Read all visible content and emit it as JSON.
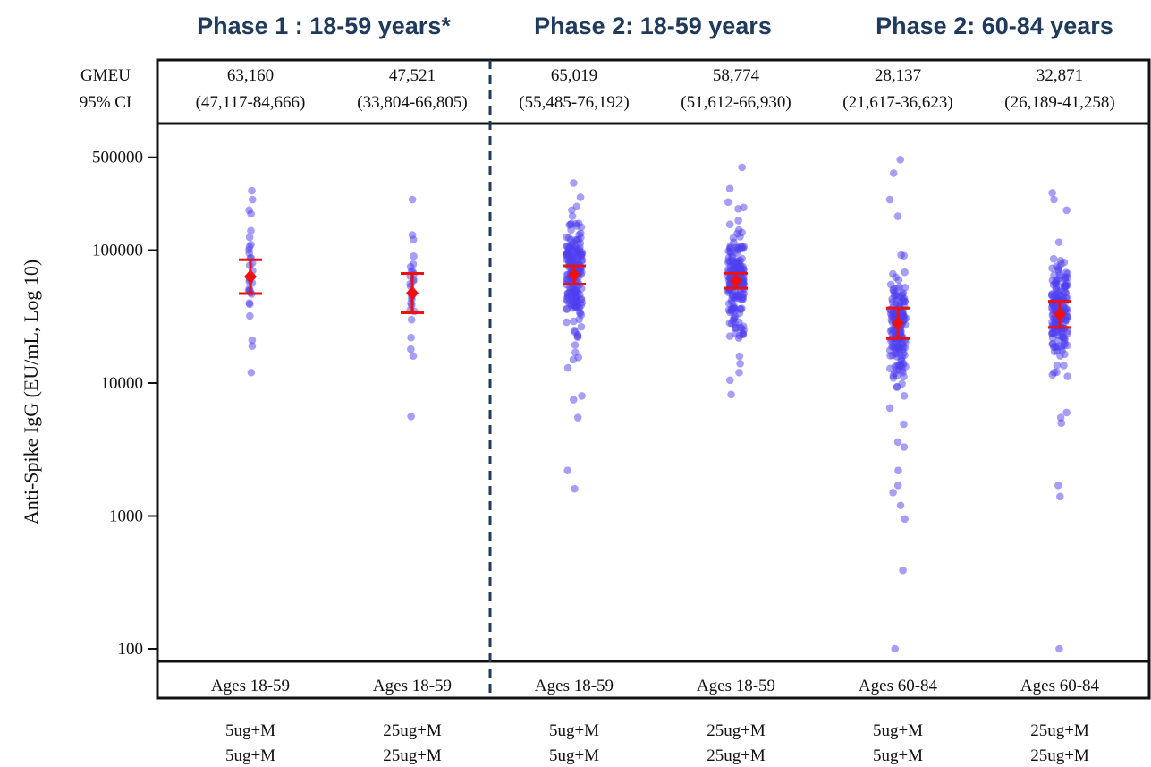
{
  "chart_data": {
    "type": "scatter",
    "ylabel": "Anti-Spike IgG (EU/mL, Log 10)",
    "yscale": "log10",
    "ylim": [
      80,
      700000
    ],
    "yticks": [
      100,
      1000,
      10000,
      100000,
      500000
    ],
    "ytick_labels": [
      "100",
      "1000",
      "10000",
      "100000",
      "500000"
    ],
    "header_stat_label": [
      "GMEU",
      "95% CI"
    ],
    "phases": [
      {
        "label": "Phase 1 : 18-59 years*",
        "groups": [
          0,
          1
        ]
      },
      {
        "label": "Phase 2: 18-59 years",
        "groups": [
          2,
          3
        ]
      },
      {
        "label": "Phase 2: 60-84 years",
        "groups": [
          4,
          5
        ]
      }
    ],
    "groups": [
      {
        "gmeu": "63,160",
        "ci": "(47,117-84,666)",
        "age": "Ages 18-59",
        "dose": [
          "5ug+M",
          "5ug+M"
        ],
        "gmt": 63160,
        "lo": 47117,
        "hi": 84666,
        "points": 30,
        "anchors": [
          280000,
          240000,
          200000,
          140000,
          125000,
          110000,
          95000,
          80000,
          70000,
          60000,
          50000,
          40000,
          32000,
          21000,
          19000,
          12000
        ]
      },
      {
        "gmeu": "47,521",
        "ci": "(33,804-66,805)",
        "age": "Ages 18-59",
        "dose": [
          "25ug+M",
          "25ug+M"
        ],
        "gmt": 47521,
        "lo": 33804,
        "hi": 66805,
        "points": 25,
        "anchors": [
          240000,
          130000,
          120000,
          90000,
          75000,
          60000,
          40000,
          30000,
          22000,
          18000,
          16000,
          5600
        ]
      },
      {
        "gmeu": "65,019",
        "ci": "(55,485-76,192)",
        "age": "Ages 18-59",
        "dose": [
          "5ug+M",
          "5ug+M"
        ],
        "gmt": 65019,
        "lo": 55485,
        "hi": 76192,
        "points": 190,
        "anchors": [
          320000,
          250000,
          200000,
          15000,
          13000,
          8000,
          7500,
          5500,
          2200,
          1600
        ]
      },
      {
        "gmeu": "58,774",
        "ci": "(51,612-66,930)",
        "age": "Ages 18-59",
        "dose": [
          "25ug+M",
          "25ug+M"
        ],
        "gmt": 58774,
        "lo": 51612,
        "hi": 66930,
        "points": 185,
        "anchors": [
          420000,
          290000,
          230000,
          14000,
          12000,
          10500,
          8200
        ]
      },
      {
        "gmeu": "28,137",
        "ci": "(21,617-36,623)",
        "age": "Ages 60-84",
        "dose": [
          "5ug+M",
          "5ug+M"
        ],
        "gmt": 28137,
        "lo": 21617,
        "hi": 36623,
        "points": 175,
        "anchors": [
          480000,
          380000,
          240000,
          180000,
          6500,
          4900,
          3600,
          3300,
          2200,
          1700,
          1500,
          1200,
          950,
          390,
          100
        ]
      },
      {
        "gmeu": "32,871",
        "ci": "(26,189-41,258)",
        "age": "Ages 60-84",
        "dose": [
          "25ug+M",
          "25ug+M"
        ],
        "gmt": 32871,
        "lo": 26189,
        "hi": 41258,
        "points": 170,
        "anchors": [
          270000,
          240000,
          200000,
          6000,
          5500,
          5000,
          1700,
          1400,
          100
        ]
      }
    ],
    "colors": {
      "points": "#4d3df0",
      "gmt": "#ee1111",
      "frame": "#111111",
      "divider": "#1f3a5a",
      "phase_title": "#1f3a5a"
    }
  }
}
